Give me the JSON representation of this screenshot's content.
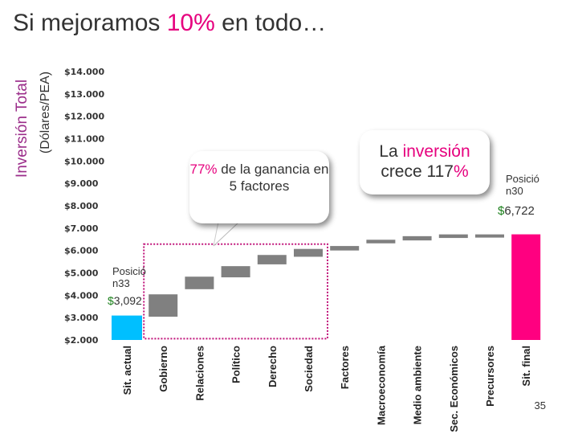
{
  "title": {
    "pre": "Si mejoramos ",
    "highlight": "10%",
    "post": " en todo…"
  },
  "y_label_main": "Inversión Total",
  "y_label_sub": "(Dólares/PEA)",
  "callout_left": {
    "hl": "77%",
    "rest": " de la ganancia en 5 factores"
  },
  "callout_right": {
    "pre": "La ",
    "hl1": "inversión",
    "mid": " crece 117",
    "hl2": "%"
  },
  "position_start": {
    "label": "Posició n33",
    "currency": "$",
    "value": "3,092"
  },
  "position_end": {
    "label": "Posició n30",
    "currency": "$",
    "value": "6,722"
  },
  "page_number": "35",
  "colors": {
    "start": "#00bfff",
    "step": "#808080",
    "end": "#ff0080",
    "accent": "#e6007e",
    "highlight_box": "#c0137a"
  },
  "chart_data": {
    "type": "bar",
    "subtype": "waterfall",
    "categories": [
      "Sit. actual",
      "Gobierno",
      "Relaciones",
      "Político",
      "Derecho",
      "Sociedad",
      "Factores",
      "Macroeconomía",
      "Medio ambiente",
      "Sec. Económicos",
      "Precursores",
      "Sit. final"
    ],
    "ranges": [
      [
        2000,
        3092
      ],
      [
        3040,
        4040
      ],
      [
        4270,
        4830
      ],
      [
        4800,
        5300
      ],
      [
        5380,
        5800
      ],
      [
        5720,
        6070
      ],
      [
        6000,
        6200
      ],
      [
        6320,
        6480
      ],
      [
        6450,
        6640
      ],
      [
        6560,
        6720
      ],
      [
        6650,
        6720
      ],
      [
        2000,
        6722
      ]
    ],
    "kinds": [
      "start",
      "step",
      "step",
      "step",
      "step",
      "step",
      "step",
      "step",
      "step",
      "step",
      "step",
      "end"
    ],
    "y_ticks": [
      "$2.000",
      "$3.000",
      "$4.000",
      "$5.000",
      "$6.000",
      "$7.000",
      "$8.000",
      "$9.000",
      "$10.000",
      "$11.000",
      "$12.000",
      "$13.000",
      "$14.000"
    ],
    "ylim": [
      2000,
      14000
    ],
    "highlighted_categories": [
      "Gobierno",
      "Relaciones",
      "Político",
      "Derecho",
      "Sociedad"
    ]
  }
}
